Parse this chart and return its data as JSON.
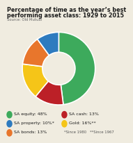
{
  "title_line1": "Percentage of time as the year’s best",
  "title_line2": "performing asset class: 1929 to 2015",
  "source": "Source: Old Mutual",
  "slices": [
    48,
    13,
    16,
    13,
    10
  ],
  "colors": [
    "#3daa5c",
    "#bc2027",
    "#f5c518",
    "#e8762c",
    "#2e7bbf"
  ],
  "start_angle": 90,
  "legend_items": [
    {
      "label": "SA equity: 48%",
      "color": "#3daa5c"
    },
    {
      "label": "SA property: 10%*",
      "color": "#2e7bbf"
    },
    {
      "label": "SA bonds: 13%",
      "color": "#e8762c"
    },
    {
      "label": "SA cash: 13%",
      "color": "#bc2027"
    },
    {
      "label": "Gold: 16%**",
      "color": "#f5c518"
    }
  ],
  "footnote": "*Since 1980   **Since 1967",
  "bg_color": "#f0ece0",
  "title_fontsize": 5.8,
  "source_fontsize": 3.8,
  "legend_fontsize": 4.5,
  "footnote_fontsize": 3.8
}
